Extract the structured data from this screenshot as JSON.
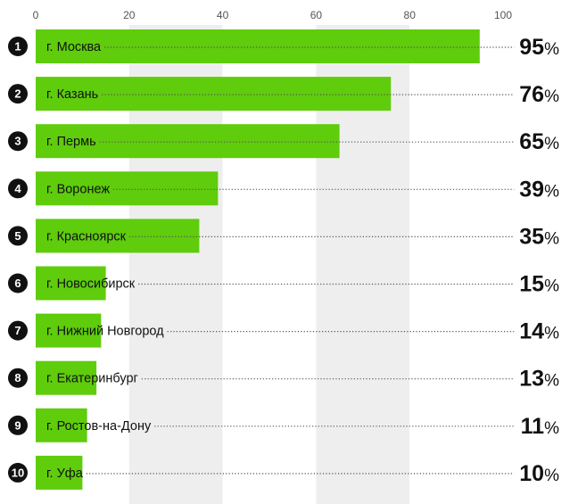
{
  "chart_data": {
    "type": "bar",
    "orientation": "horizontal",
    "title": "",
    "xlabel": "",
    "ylabel": "",
    "xlim": [
      0,
      100
    ],
    "x_ticks": [
      0,
      20,
      40,
      60,
      80,
      100
    ],
    "tick_position": "top",
    "grid": "alternating vertical bands",
    "value_suffix": "%",
    "bar_color": "#5fcc0c",
    "band_color": "#eeeeee",
    "rank_badge_color": "#111111",
    "ranks": [
      "1",
      "2",
      "3",
      "4",
      "5",
      "6",
      "7",
      "8",
      "9",
      "10"
    ],
    "categories": [
      "г. Москва",
      "г. Казань",
      "г. Пермь",
      "г. Воронеж",
      "г. Красноярск",
      "г. Новосибирск",
      "г. Нижний Новгород",
      "г. Екатеринбург",
      "г. Ростов-на-Дону",
      "г. Уфа"
    ],
    "values": [
      95,
      76,
      65,
      39,
      35,
      15,
      14,
      13,
      11,
      10
    ]
  }
}
